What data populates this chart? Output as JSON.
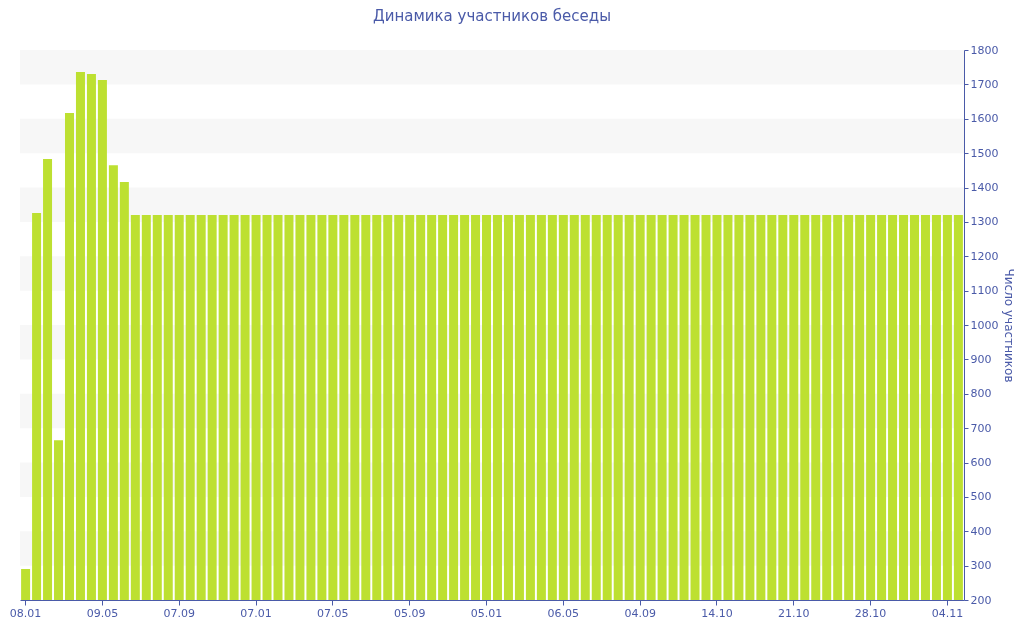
{
  "chart_data": {
    "type": "bar",
    "title": "Динамика участников беседы",
    "ylabel": "Число участников",
    "categories": [
      "08.01",
      null,
      null,
      null,
      null,
      null,
      null,
      "09.05",
      null,
      null,
      null,
      null,
      null,
      null,
      "07.09",
      null,
      null,
      null,
      null,
      null,
      null,
      "07.01",
      null,
      null,
      null,
      null,
      null,
      null,
      "07.05",
      null,
      null,
      null,
      null,
      null,
      null,
      "05.09",
      null,
      null,
      null,
      null,
      null,
      null,
      "05.01",
      null,
      null,
      null,
      null,
      null,
      null,
      "06.05",
      null,
      null,
      null,
      null,
      null,
      null,
      "04.09",
      null,
      null,
      null,
      null,
      null,
      null,
      "14.10",
      null,
      null,
      null,
      null,
      null,
      null,
      "21.10",
      null,
      null,
      null,
      null,
      null,
      null,
      "28.10",
      null,
      null,
      null,
      null,
      null,
      null,
      "04.11",
      null
    ],
    "values": [
      290,
      1326,
      1483,
      665,
      1617,
      1736,
      1730,
      1713,
      1465,
      1416,
      1320,
      1320,
      1320,
      1320,
      1320,
      1320,
      1320,
      1320,
      1320,
      1320,
      1320,
      1320,
      1320,
      1320,
      1320,
      1320,
      1320,
      1320,
      1320,
      1320,
      1320,
      1320,
      1320,
      1320,
      1320,
      1320,
      1320,
      1320,
      1320,
      1320,
      1320,
      1320,
      1320,
      1320,
      1320,
      1320,
      1320,
      1320,
      1320,
      1320,
      1320,
      1320,
      1320,
      1320,
      1320,
      1320,
      1320,
      1320,
      1320,
      1320,
      1320,
      1320,
      1320,
      1320,
      1320,
      1320,
      1320,
      1320,
      1320,
      1320,
      1320,
      1320,
      1320,
      1320,
      1320,
      1320,
      1320,
      1320,
      1320,
      1320,
      1320,
      1320,
      1320,
      1320,
      1320,
      1320
    ],
    "color": "#bde031",
    "ylim": [
      200,
      1800
    ],
    "yticks": [
      200,
      300,
      400,
      500,
      600,
      700,
      800,
      900,
      1000,
      1100,
      1200,
      1300,
      1400,
      1500,
      1600,
      1700,
      1800
    ],
    "bands": [
      {
        "axis": "y",
        "from": 1700,
        "to": 1800,
        "color": "#f7f7f7"
      },
      {
        "axis": "y",
        "from": 1500,
        "to": 1600,
        "color": "#f7f7f7"
      },
      {
        "axis": "y",
        "from": 1300,
        "to": 1400,
        "color": "#f7f7f7"
      },
      {
        "axis": "y",
        "from": 1100,
        "to": 1200,
        "color": "#f7f7f7"
      },
      {
        "axis": "y",
        "from": 900,
        "to": 1000,
        "color": "#f7f7f7"
      },
      {
        "axis": "y",
        "from": 700,
        "to": 800,
        "color": "#f7f7f7"
      },
      {
        "axis": "y",
        "from": 500,
        "to": 600,
        "color": "#f7f7f7"
      },
      {
        "axis": "y",
        "from": 300,
        "to": 400,
        "color": "#f7f7f7"
      }
    ]
  }
}
